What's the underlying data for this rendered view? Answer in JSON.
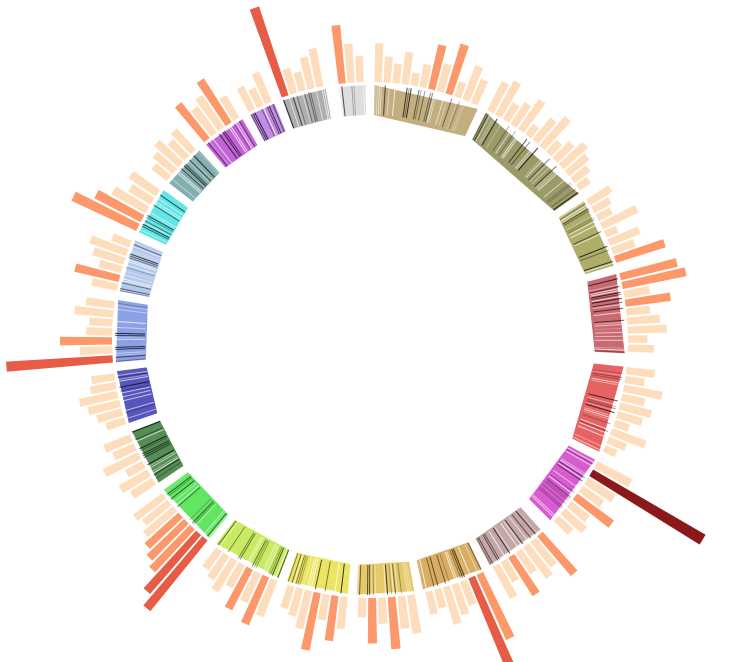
{
  "chart_data": {
    "type": "circos",
    "bar_colors": [
      {
        "min": 0,
        "color": "#fdd9b4"
      },
      {
        "min": 35,
        "color": "#fc8d59"
      },
      {
        "min": 60,
        "color": "#e34a33"
      },
      {
        "min": 90,
        "color": "#7f0000"
      }
    ],
    "segments": [
      {
        "color": "#b8a068",
        "start": 1,
        "end": 25,
        "values": [
          30,
          20,
          15,
          25,
          10,
          18,
          35,
          22,
          40,
          12,
          28,
          20
        ]
      },
      {
        "color": "#8a8a50",
        "start": 27,
        "end": 55,
        "values": [
          25,
          30,
          15,
          20,
          28,
          10,
          22,
          30,
          12,
          18,
          25,
          20,
          15,
          10
        ]
      },
      {
        "color": "#a0a050",
        "start": 57,
        "end": 73,
        "values": [
          20,
          15,
          12,
          30,
          10,
          25,
          18,
          40
        ]
      },
      {
        "color": "#c05058",
        "start": 75,
        "end": 93,
        "values": [
          45,
          50,
          20,
          35,
          18,
          25,
          30,
          15,
          20
        ]
      },
      {
        "color": "#e04848",
        "start": 96,
        "end": 116,
        "values": [
          22,
          15,
          30,
          18,
          25,
          20,
          12,
          28,
          15,
          10
        ]
      },
      {
        "color": "#d040c8",
        "start": 118,
        "end": 135,
        "values": [
          30,
          100,
          25,
          20,
          35,
          18,
          22,
          15
        ]
      },
      {
        "color": "#b89898",
        "start": 138,
        "end": 152,
        "values": [
          40,
          25,
          30,
          20,
          35,
          18,
          28
        ]
      },
      {
        "color": "#d0a048",
        "start": 154,
        "end": 168,
        "values": [
          55,
          80,
          20,
          25,
          30,
          15,
          18
        ]
      },
      {
        "color": "#e0c050",
        "start": 170,
        "end": 183,
        "values": [
          30,
          25,
          40,
          20,
          35,
          15
        ]
      },
      {
        "color": "#e8e048",
        "start": 185,
        "end": 199,
        "values": [
          25,
          35,
          20,
          45,
          30,
          22,
          18
        ]
      },
      {
        "color": "#c0e848",
        "start": 201,
        "end": 217,
        "values": [
          30,
          40,
          25,
          35,
          20,
          28,
          22,
          18
        ]
      },
      {
        "color": "#48e048",
        "start": 219,
        "end": 234,
        "values": [
          70,
          60,
          45,
          40,
          35,
          30,
          25,
          28
        ]
      },
      {
        "color": "#387838",
        "start": 236,
        "end": 249,
        "values": [
          20,
          25,
          15,
          30,
          18,
          22
        ]
      },
      {
        "color": "#3838b0",
        "start": 251,
        "end": 263,
        "values": [
          15,
          20,
          25,
          30,
          20,
          18
        ]
      },
      {
        "color": "#7890e0",
        "start": 265,
        "end": 279,
        "values": [
          82,
          25,
          40,
          20,
          18,
          30,
          22
        ]
      },
      {
        "color": "#a8c0e8",
        "start": 281,
        "end": 293,
        "values": [
          20,
          35,
          18,
          25,
          30,
          15
        ]
      },
      {
        "color": "#48e0e0",
        "start": 295,
        "end": 306,
        "values": [
          55,
          40,
          30,
          20,
          25
        ]
      },
      {
        "color": "#70a0a0",
        "start": 308,
        "end": 318,
        "values": [
          15,
          20,
          25,
          18,
          22
        ]
      },
      {
        "color": "#b848d0",
        "start": 320,
        "end": 330,
        "values": [
          35,
          25,
          30,
          40,
          20
        ]
      },
      {
        "color": "#b878e0",
        "start": 332,
        "end": 338,
        "values": [
          20,
          15,
          25
        ]
      },
      {
        "color": "#a0a0a0",
        "start": 340,
        "end": 350,
        "values": [
          72,
          20,
          15,
          25,
          30
        ]
      },
      {
        "color": "#d8d8d8",
        "start": 353,
        "end": 359,
        "values": [
          45,
          30,
          20
        ]
      }
    ]
  }
}
